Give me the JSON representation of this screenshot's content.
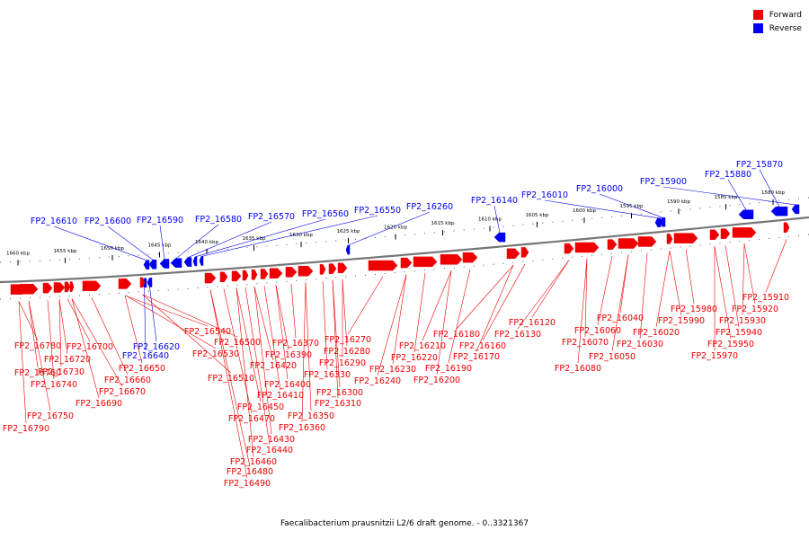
{
  "legend": {
    "items": [
      {
        "label": "Forward",
        "color": "#ee0000"
      },
      {
        "label": "Reverse",
        "color": "#0000ee"
      }
    ]
  },
  "caption": "Faecalibacterium prausnitzii L2/6 draft genome. - 0..3321367",
  "colors": {
    "forward": "#ee0000",
    "reverse": "#0000ee",
    "backbone": "#777777",
    "tick": "#000000"
  },
  "scale_ticks": [
    {
      "label": "1660 kbp",
      "kbp": 1660
    },
    {
      "label": "1655 kbp",
      "kbp": 1655
    },
    {
      "label": "1650 kbp",
      "kbp": 1650
    },
    {
      "label": "1645 kbp",
      "kbp": 1645
    },
    {
      "label": "1640 kbp",
      "kbp": 1640
    },
    {
      "label": "1635 kbp",
      "kbp": 1635
    },
    {
      "label": "1630 kbp",
      "kbp": 1630
    },
    {
      "label": "1625 kbp",
      "kbp": 1625
    },
    {
      "label": "1620 kbp",
      "kbp": 1620
    },
    {
      "label": "1615 kbp",
      "kbp": 1615
    },
    {
      "label": "1610 kbp",
      "kbp": 1610
    },
    {
      "label": "1605 kbp",
      "kbp": 1605
    },
    {
      "label": "1600 kbp",
      "kbp": 1600
    },
    {
      "label": "1595 kbp",
      "kbp": 1595
    },
    {
      "label": "1590 kbp",
      "kbp": 1590
    },
    {
      "label": "1585 kbp",
      "kbp": 1585
    },
    {
      "label": "1580 kbp",
      "kbp": 1580
    }
  ],
  "reverse_genes": [
    "FP2_15870",
    "FP2_15880",
    "FP2_15900",
    "FP2_16000",
    "FP2_16010",
    "FP2_16140",
    "FP2_16260",
    "FP2_16550",
    "FP2_16560",
    "FP2_16570",
    "FP2_16580",
    "FP2_16590",
    "FP2_16600",
    "FP2_16610",
    "FP2_16620",
    "FP2_16640"
  ],
  "forward_genes": [
    "FP2_16790",
    "FP2_16780",
    "FP2_16750",
    "FP2_16760",
    "FP2_16740",
    "FP2_16730",
    "FP2_16720",
    "FP2_16700",
    "FP2_16690",
    "FP2_16670",
    "FP2_16660",
    "FP2_16650",
    "FP2_16540",
    "FP2_16530",
    "FP2_16510",
    "FP2_16500",
    "FP2_16490",
    "FP2_16480",
    "FP2_16470",
    "FP2_16460",
    "FP2_16450",
    "FP2_16440",
    "FP2_16430",
    "FP2_16420",
    "FP2_16410",
    "FP2_16400",
    "FP2_16390",
    "FP2_16370",
    "FP2_16360",
    "FP2_16350",
    "FP2_16330",
    "FP2_16310",
    "FP2_16300",
    "FP2_16290",
    "FP2_16280",
    "FP2_16270",
    "FP2_16240",
    "FP2_16230",
    "FP2_16220",
    "FP2_16210",
    "FP2_16200",
    "FP2_16190",
    "FP2_16180",
    "FP2_16170",
    "FP2_16160",
    "FP2_16130",
    "FP2_16120",
    "FP2_16080",
    "FP2_16070",
    "FP2_16060",
    "FP2_16050",
    "FP2_16040",
    "FP2_16030",
    "FP2_16020",
    "FP2_15990",
    "FP2_15980",
    "FP2_15970",
    "FP2_15950",
    "FP2_15940",
    "FP2_15930",
    "FP2_15920",
    "FP2_15910"
  ]
}
